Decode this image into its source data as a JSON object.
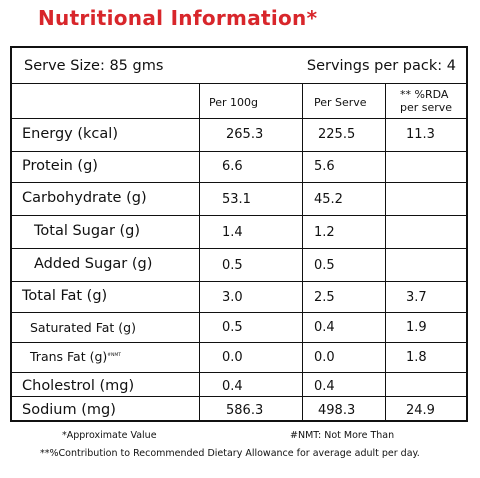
{
  "title": "Nutritional Information*",
  "serve_size": "Serve Size: 85 gms",
  "servings": "Servings per pack: 4",
  "headers": {
    "per100": "Per 100g",
    "perServe": "Per Serve",
    "rda_line1": "** %RDA",
    "rda_line2": "per serve"
  },
  "rows": [
    {
      "label": "Energy (kcal)",
      "suffix": "",
      "per100": "265.3",
      "perServe": "225.5",
      "rda": "11.3"
    },
    {
      "label": "Protein (g)",
      "suffix": "",
      "per100": "6.6",
      "perServe": "5.6",
      "rda": ""
    },
    {
      "label": "Carbohydrate (g)",
      "suffix": "",
      "per100": "53.1",
      "perServe": "45.2",
      "rda": ""
    },
    {
      "label": "Total Sugar (g)",
      "suffix": "",
      "per100": "1.4",
      "perServe": "1.2",
      "rda": ""
    },
    {
      "label": "Added Sugar (g)",
      "suffix": "",
      "per100": "0.5",
      "perServe": "0.5",
      "rda": ""
    },
    {
      "label": "Total Fat (g)",
      "suffix": "",
      "per100": "3.0",
      "perServe": "2.5",
      "rda": "3.7"
    },
    {
      "label": "Saturated Fat (g)",
      "suffix": "",
      "per100": "0.5",
      "perServe": "0.4",
      "rda": "1.9"
    },
    {
      "label": "Trans Fat (g)",
      "suffix": "#NMT",
      "per100": "0.0",
      "perServe": "0.0",
      "rda": "1.8"
    },
    {
      "label": "Cholestrol (mg)",
      "suffix": "",
      "per100": "0.4",
      "perServe": "0.4",
      "rda": ""
    },
    {
      "label": "Sodium (mg)",
      "suffix": "",
      "per100": "586.3",
      "perServe": "498.3",
      "rda": "24.9"
    }
  ],
  "footnotes": {
    "approx": "*Approximate Value",
    "nmt": "#NMT: Not More Than",
    "rda": "**%Contribution to Recommended Dietary Allowance for average adult per day."
  }
}
